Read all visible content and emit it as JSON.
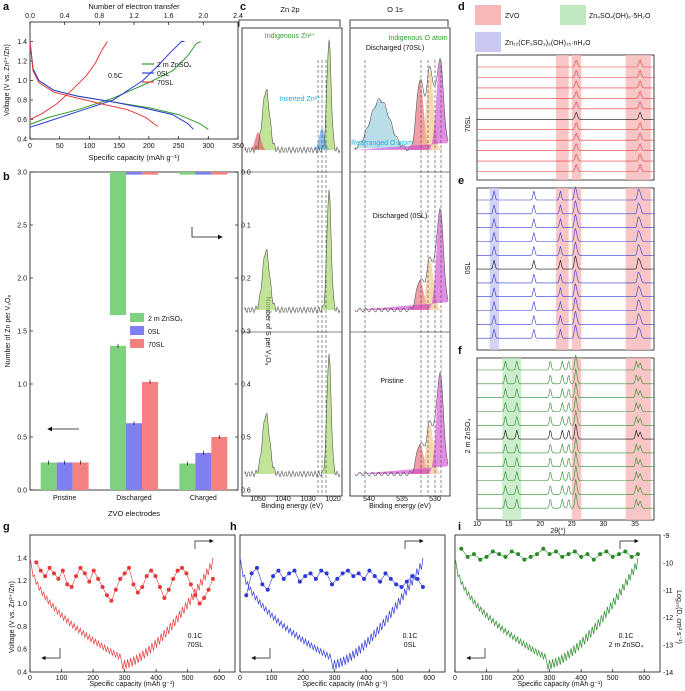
{
  "colors": {
    "green": "#2e9e2e",
    "blue": "#2f39d6",
    "red": "#e8393c",
    "bar_green": "#7fd17f",
    "bar_blue": "#7f7ff0",
    "bar_red": "#f48080",
    "band_red": "#f6b8b8",
    "band_green": "#bfe8bf",
    "band_blue": "#c8c8f2"
  },
  "panels": {
    "a": "a",
    "b": "b",
    "c": "c",
    "d": "d",
    "e": "e",
    "f": "f",
    "g": "g",
    "h": "h",
    "i": "i"
  },
  "chart_data": [
    {
      "panel": "a",
      "type": "line",
      "title": "",
      "xlabel": "Specific capacity (mAh g⁻¹)",
      "ylabel": "Voltage (V vs. Zn²⁺/Zn)",
      "top_xlabel": "Number of electron transfer",
      "xlim": [
        0,
        350
      ],
      "ylim": [
        0.4,
        1.6
      ],
      "top_xlim": [
        0,
        2.4
      ],
      "xticks": [
        "0",
        "50",
        "100",
        "150",
        "200",
        "250",
        "300",
        "350"
      ],
      "yticks": [
        "0.4",
        "0.6",
        "0.8",
        "1.0",
        "1.2",
        "1.4"
      ],
      "top_xticks": [
        "0.0",
        "0.4",
        "0.8",
        "1.2",
        "1.6",
        "2.0",
        "2.4"
      ],
      "annotation": "0.5C",
      "legend": [
        "2 m ZnSO₄",
        "0SL",
        "70SL"
      ],
      "series": [
        {
          "name": "2 m ZnSO₄",
          "color_key": "green",
          "discharge": [
            [
              0,
              1.4
            ],
            [
              5,
              1.12
            ],
            [
              15,
              1.0
            ],
            [
              40,
              0.9
            ],
            [
              80,
              0.84
            ],
            [
              140,
              0.78
            ],
            [
              200,
              0.72
            ],
            [
              250,
              0.65
            ],
            [
              285,
              0.56
            ],
            [
              300,
              0.5
            ]
          ],
          "charge": [
            [
              0,
              0.55
            ],
            [
              30,
              0.62
            ],
            [
              80,
              0.7
            ],
            [
              140,
              0.82
            ],
            [
              200,
              0.98
            ],
            [
              240,
              1.1
            ],
            [
              265,
              1.25
            ],
            [
              280,
              1.38
            ],
            [
              287,
              1.4
            ]
          ]
        },
        {
          "name": "0SL",
          "color_key": "blue",
          "discharge": [
            [
              0,
              1.4
            ],
            [
              5,
              1.12
            ],
            [
              15,
              1.0
            ],
            [
              40,
              0.9
            ],
            [
              80,
              0.84
            ],
            [
              140,
              0.78
            ],
            [
              190,
              0.72
            ],
            [
              240,
              0.65
            ],
            [
              265,
              0.56
            ],
            [
              275,
              0.5
            ]
          ],
          "charge": [
            [
              0,
              0.52
            ],
            [
              30,
              0.58
            ],
            [
              80,
              0.68
            ],
            [
              140,
              0.8
            ],
            [
              190,
              1.0
            ],
            [
              215,
              1.15
            ],
            [
              235,
              1.28
            ],
            [
              255,
              1.4
            ],
            [
              260,
              1.4
            ]
          ]
        },
        {
          "name": "70SL",
          "color_key": "red",
          "discharge": [
            [
              0,
              1.4
            ],
            [
              5,
              1.1
            ],
            [
              15,
              0.98
            ],
            [
              40,
              0.88
            ],
            [
              80,
              0.82
            ],
            [
              120,
              0.76
            ],
            [
              165,
              0.7
            ],
            [
              195,
              0.62
            ],
            [
              210,
              0.55
            ],
            [
              215,
              0.53
            ]
          ],
          "charge": [
            [
              0,
              0.6
            ],
            [
              20,
              0.66
            ],
            [
              45,
              0.76
            ],
            [
              70,
              0.9
            ],
            [
              95,
              1.05
            ],
            [
              110,
              1.18
            ],
            [
              120,
              1.3
            ],
            [
              130,
              1.4
            ]
          ]
        }
      ]
    },
    {
      "panel": "b",
      "type": "bar",
      "xlabel": "ZVO electrodes",
      "ylabel": "Number of Zn per V₃O₈",
      "ylabel_right": "Number of S per V₃O₈",
      "categories": [
        "Pristine",
        "Discharged",
        "Charged"
      ],
      "ylim": [
        0,
        3.0
      ],
      "ylim_right": [
        0.0,
        0.6
      ],
      "yticks": [
        "0.0",
        "0.5",
        "1.0",
        "1.5",
        "2.0",
        "2.5",
        "3.0"
      ],
      "yticks_right": [
        "0.0",
        "0.1",
        "0.2",
        "0.3",
        "0.4",
        "0.5",
        "0.6"
      ],
      "legend": [
        "2 m ZnSO₄",
        "0SL",
        "70SL"
      ],
      "series": [
        {
          "name": "2 m ZnSO₄",
          "color_key": "bar_green",
          "values": [
            0.26,
            1.36,
            0.25
          ]
        },
        {
          "name": "0SL",
          "color_key": "bar_blue",
          "values": [
            0.26,
            0.63,
            0.35
          ]
        },
        {
          "name": "70SL",
          "color_key": "bar_red",
          "values": [
            0.26,
            1.02,
            0.5
          ]
        }
      ],
      "series_right": [
        {
          "name": "2 m ZnSO₄",
          "color_key": "bar_green",
          "values": [
            0.0,
            0.27,
            0.005
          ]
        },
        {
          "name": "0SL",
          "color_key": "bar_blue",
          "values": [
            0.0,
            0.005,
            0.005
          ]
        },
        {
          "name": "70SL",
          "color_key": "bar_red",
          "values": [
            0.0,
            0.005,
            0.005
          ]
        }
      ]
    },
    {
      "panel": "c",
      "type": "line",
      "subtitle_left": "Zn 2p",
      "subtitle_right": "O 1s",
      "xlabel_left": "Binding energy (eV)",
      "xlabel_right": "Binding energy (eV)",
      "xticks_left": [
        "1050",
        "1040",
        "1030",
        "1020"
      ],
      "xticks_right": [
        "540",
        "535",
        "530"
      ],
      "sections": [
        "Discharged (70SL)",
        "Discharged (0SL)",
        "Pristine"
      ],
      "annotations": [
        "Indigenous Zn²⁺",
        "Inserted Zn²⁺",
        "Indigenous O atom",
        "Rearranged O atom"
      ]
    },
    {
      "panel": "d-f",
      "type": "line",
      "xlabel": "2θ(°)",
      "xlim": [
        10,
        38
      ],
      "xticks": [
        "10",
        "15",
        "20",
        "25",
        "30",
        "35"
      ],
      "legend": [
        "ZVO",
        "Zn₄SO₄(OH)₆·5H₂O",
        "Zn₁₂(CF₃SO₃)₉(OH)₁₅·nH₂O"
      ],
      "row_labels": [
        "70SL",
        "0SL",
        "2 m ZnSO₄"
      ],
      "traces_per_panel": 11
    },
    {
      "panel": "g",
      "type": "line",
      "xlabel": "Specific capacity (mAh g⁻¹)",
      "ylabel": "Voltage (V vs. Zn²⁺/Zn)",
      "xlim": [
        0,
        650
      ],
      "ylim": [
        0.4,
        1.6
      ],
      "xticks": [
        "0",
        "100",
        "200",
        "300",
        "400",
        "500",
        "600"
      ],
      "yticks": [
        "0.4",
        "0.6",
        "0.8",
        "1.0",
        "1.2",
        "1.4"
      ],
      "annotation": [
        "0.1C",
        "70SL"
      ],
      "diffusion_logD": [
        -10.0,
        -10.3,
        -10.5,
        -10.2,
        -10.4,
        -10.6,
        -10.3,
        -10.8,
        -10.9,
        -10.5,
        -10.2,
        -10.4,
        -10.7,
        -10.3,
        -10.6,
        -10.9,
        -11.2,
        -11.4,
        -11.0,
        -10.6,
        -10.4,
        -10.2,
        -10.8,
        -11.1,
        -10.9,
        -10.5,
        -10.3,
        -10.5,
        -10.9,
        -11.3,
        -11.0,
        -10.6,
        -10.3,
        -10.2,
        -10.4,
        -10.8,
        -11.2,
        -11.5,
        -11.3,
        -11.0,
        -10.6
      ]
    },
    {
      "panel": "h",
      "type": "line",
      "xlabel": "Specific capacity (mAh g⁻¹)",
      "xlim": [
        0,
        650
      ],
      "ylim": [
        0.4,
        1.6
      ],
      "xticks": [
        "0",
        "100",
        "200",
        "300",
        "400",
        "500",
        "600"
      ],
      "annotation": [
        "0.1C",
        "0SL"
      ],
      "diffusion_logD": [
        -11.2,
        -10.4,
        -10.2,
        -10.8,
        -11.0,
        -10.5,
        -10.3,
        -10.6,
        -10.4,
        -10.3,
        -10.7,
        -10.5,
        -10.4,
        -10.6,
        -10.3,
        -10.4,
        -10.8,
        -10.6,
        -10.4,
        -10.3,
        -10.5,
        -10.4,
        -10.6,
        -10.3,
        -10.5,
        -10.7,
        -10.4,
        -10.6,
        -10.8,
        -10.9,
        -10.7,
        -10.5,
        -10.6,
        -10.9
      ]
    },
    {
      "panel": "i",
      "type": "line",
      "xlabel": "Specific capacity (mAh g⁻¹)",
      "ylabel_right": "Log₁₀(D, cm² s⁻¹)",
      "xlim": [
        0,
        650
      ],
      "ylim": [
        -14,
        -9
      ],
      "xticks": [
        "0",
        "100",
        "200",
        "300",
        "400",
        "500",
        "600"
      ],
      "yticks_right": [
        "-9",
        "-10",
        "-11",
        "-12",
        "-13",
        "-14"
      ],
      "annotation": [
        "0.1C",
        "2 m ZnSO₄"
      ],
      "diffusion_logD": [
        -9.5,
        -9.8,
        -9.7,
        -9.9,
        -9.8,
        -9.6,
        -9.7,
        -9.8,
        -9.6,
        -9.7,
        -9.9,
        -9.8,
        -9.7,
        -9.5,
        -9.7,
        -9.6,
        -9.8,
        -9.7,
        -9.6,
        -9.8,
        -9.7,
        -9.9,
        -9.7,
        -9.6,
        -9.8,
        -9.7,
        -9.6,
        -9.8,
        -9.7
      ]
    }
  ]
}
